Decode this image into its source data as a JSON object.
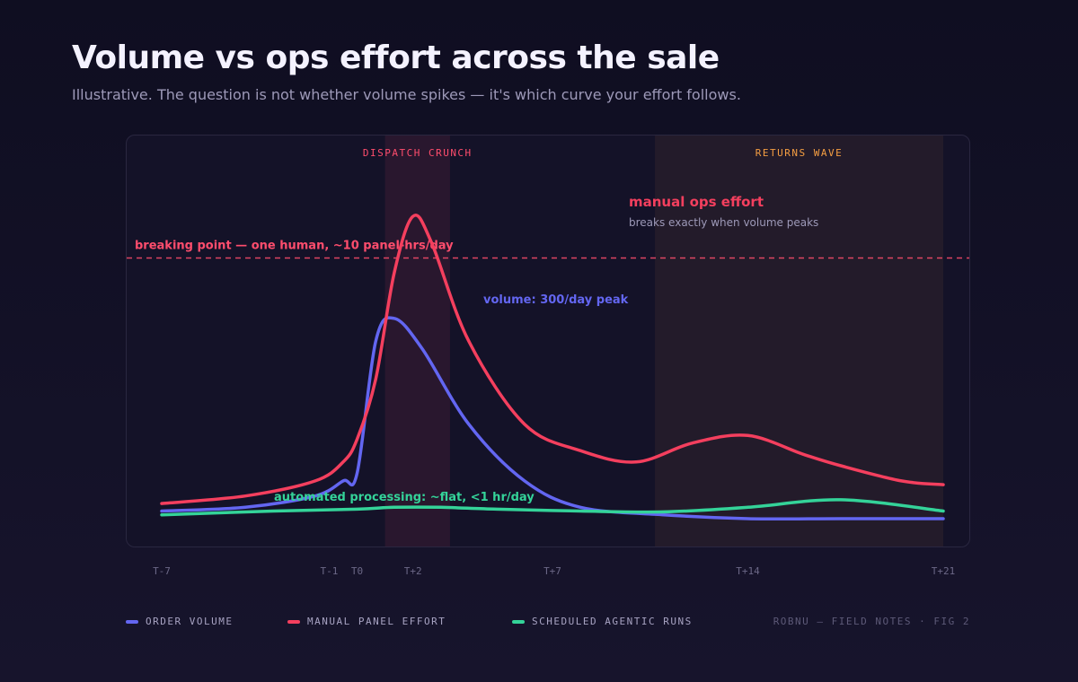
{
  "header": {
    "title": "Volume vs ops effort across the sale",
    "subtitle": "Illustrative. The question is not whether volume spikes — it's which curve your effort follows."
  },
  "chart_data": {
    "type": "line",
    "x_ticks": [
      "T-7",
      "T-1",
      "T0",
      "T+2",
      "T+7",
      "T+14",
      "T+21"
    ],
    "x_tick_positions": [
      -7,
      -1,
      0,
      2,
      7,
      14,
      21
    ],
    "xlim": [
      -7,
      21
    ],
    "ylim": [
      0,
      100
    ],
    "bands": [
      {
        "label": "DISPATCH CRUNCH",
        "from": 1,
        "to": 3.33,
        "color": "#ff4d6d"
      },
      {
        "label": "RETURNS WAVE",
        "from": 10.67,
        "to": 21,
        "color": "#f59e42"
      }
    ],
    "threshold": {
      "label": "breaking point — one human, ~10 panel-hrs/day",
      "value": 74,
      "color": "#ff4d6d"
    },
    "series": [
      {
        "name": "ORDER VOLUME",
        "color": "#6366f1",
        "points": [
          [
            -7,
            7
          ],
          [
            -4,
            8
          ],
          [
            -1.5,
            11
          ],
          [
            -0.5,
            15
          ],
          [
            0,
            17
          ],
          [
            0.67,
            52
          ],
          [
            1.33,
            58
          ],
          [
            2.33,
            50
          ],
          [
            4,
            30
          ],
          [
            6,
            15
          ],
          [
            8,
            8
          ],
          [
            11,
            6
          ],
          [
            14,
            5
          ],
          [
            17.33,
            5
          ],
          [
            21,
            5
          ]
        ]
      },
      {
        "name": "MANUAL PANEL EFFORT",
        "color": "#f43f5e",
        "points": [
          [
            -7,
            9
          ],
          [
            -4,
            11
          ],
          [
            -1.5,
            15
          ],
          [
            -0.5,
            20
          ],
          [
            0,
            26
          ],
          [
            0.67,
            42
          ],
          [
            1.33,
            70
          ],
          [
            2,
            85
          ],
          [
            2.67,
            78
          ],
          [
            4,
            52
          ],
          [
            6,
            30
          ],
          [
            8,
            23
          ],
          [
            10,
            20
          ],
          [
            12,
            25
          ],
          [
            14,
            27
          ],
          [
            16,
            22
          ],
          [
            17.33,
            19
          ],
          [
            19.5,
            15
          ],
          [
            21,
            14
          ]
        ]
      },
      {
        "name": "SCHEDULED AGENTIC RUNS",
        "color": "#34d399",
        "points": [
          [
            -7,
            6
          ],
          [
            -3,
            7
          ],
          [
            0,
            7.5
          ],
          [
            1.33,
            8
          ],
          [
            3,
            8
          ],
          [
            5,
            7.5
          ],
          [
            8,
            7
          ],
          [
            11,
            6.8
          ],
          [
            14,
            8
          ],
          [
            17.33,
            10
          ],
          [
            21,
            7
          ]
        ]
      }
    ],
    "annotations": [
      {
        "id": "volume",
        "text": "volume: 300/day peak",
        "color": "#6366f1"
      },
      {
        "id": "manual_title",
        "text": "manual ops effort",
        "color": "#f43f5e"
      },
      {
        "id": "manual_sub",
        "text": "breaks exactly when volume peaks",
        "color": "#9d99b8"
      },
      {
        "id": "automated",
        "text": "automated processing: ~flat, <1 hr/day",
        "color": "#34d399"
      }
    ]
  },
  "legend": {
    "items": [
      {
        "label": "ORDER VOLUME",
        "color": "#6366f1"
      },
      {
        "label": "MANUAL PANEL EFFORT",
        "color": "#f43f5e"
      },
      {
        "label": "SCHEDULED AGENTIC RUNS",
        "color": "#34d399"
      }
    ],
    "credit": "ROBNU — FIELD NOTES · FIG 2"
  }
}
